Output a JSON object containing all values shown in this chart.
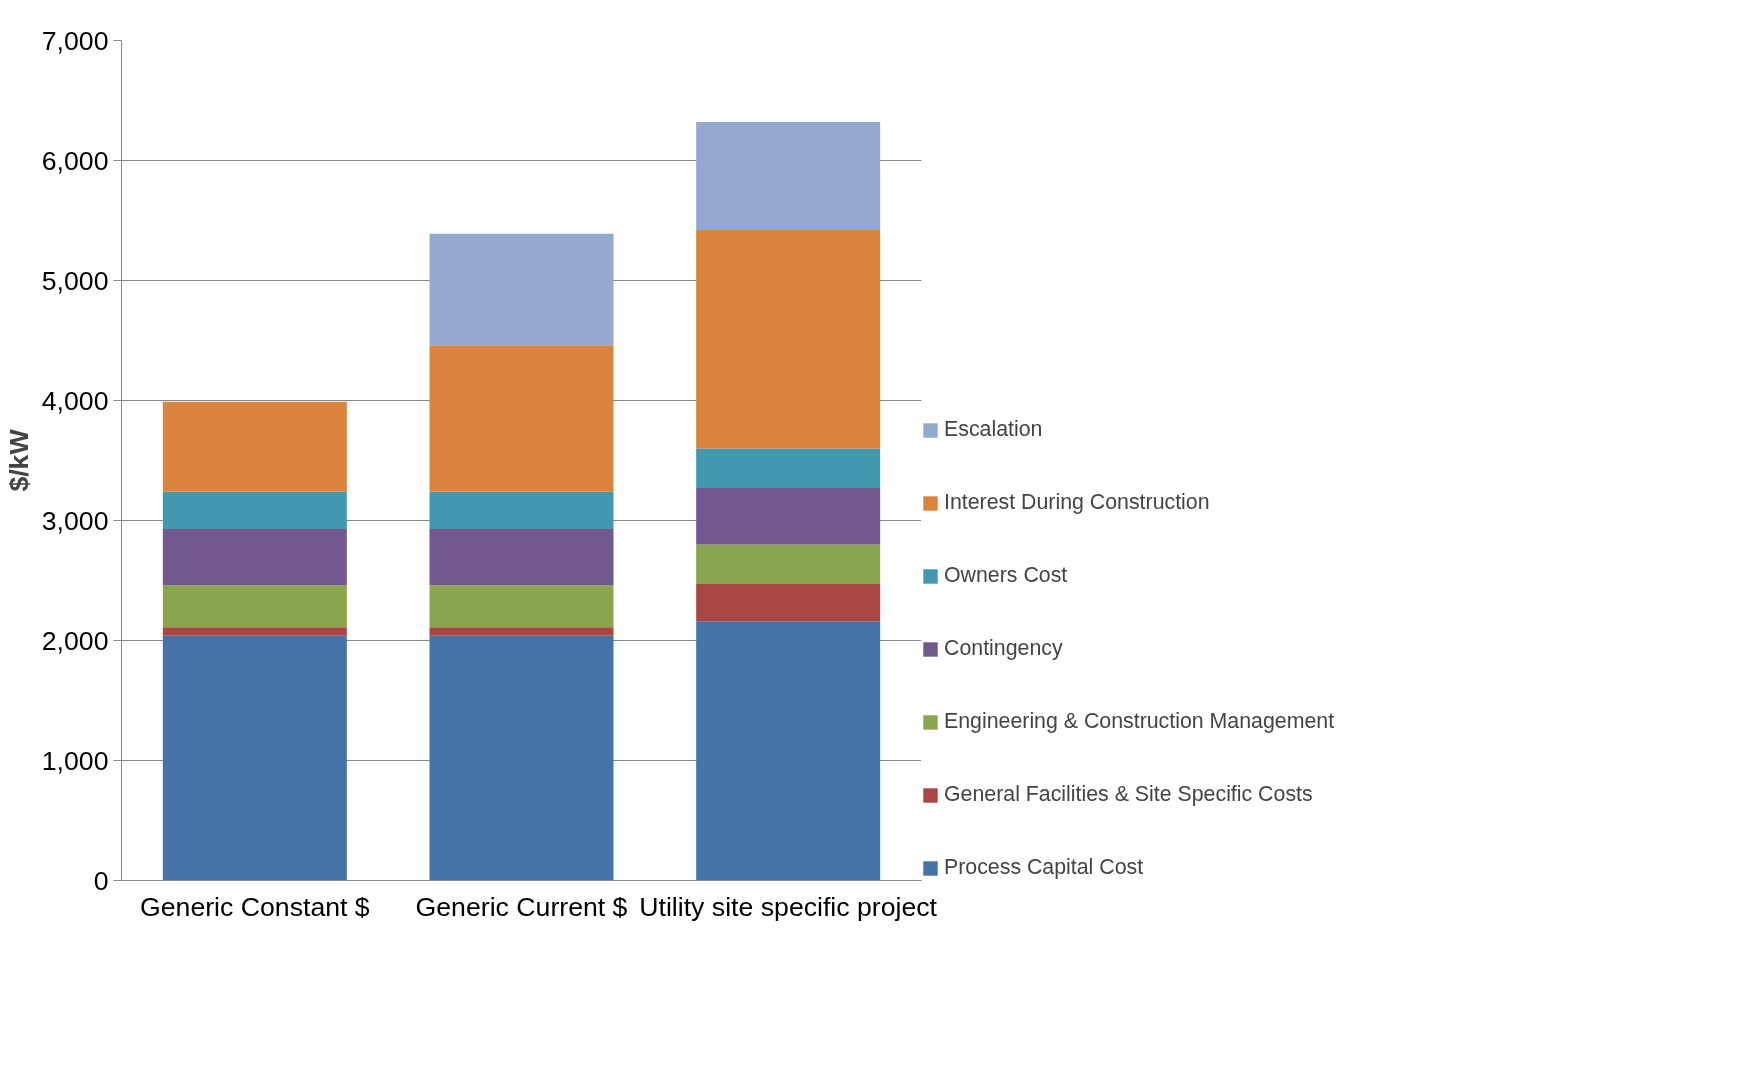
{
  "chart_data": {
    "type": "bar",
    "stacked": true,
    "ylabel": "$/kW",
    "categories": [
      "Generic Constant $",
      "Generic Current $",
      "Utility site specific project"
    ],
    "series": [
      {
        "name": "Process Capital Cost",
        "color": "#4572a7",
        "values": [
          2040,
          2040,
          2160
        ]
      },
      {
        "name": "General Facilities & Site Specific Costs",
        "color": "#aa4643",
        "values": [
          70,
          70,
          310
        ]
      },
      {
        "name": "Engineering & Construction Management",
        "color": "#89a54e",
        "values": [
          350,
          350,
          330
        ]
      },
      {
        "name": "Contingency",
        "color": "#71588f",
        "values": [
          470,
          470,
          470
        ]
      },
      {
        "name": "Owners Cost",
        "color": "#4198af",
        "values": [
          310,
          310,
          330
        ]
      },
      {
        "name": "Interest During Construction",
        "color": "#db843d",
        "values": [
          750,
          1220,
          1820
        ]
      },
      {
        "name": "Escalation",
        "color": "#93a9cf",
        "values": [
          0,
          930,
          900
        ]
      }
    ],
    "ylim": [
      0,
      7000
    ],
    "yticks": [
      {
        "value": 0,
        "label": "0"
      },
      {
        "value": 1000,
        "label": "1,000"
      },
      {
        "value": 2000,
        "label": "2,000"
      },
      {
        "value": 3000,
        "label": "3,000"
      },
      {
        "value": 4000,
        "label": "4,000"
      },
      {
        "value": 5000,
        "label": "5,000"
      },
      {
        "value": 6000,
        "label": "6,000"
      },
      {
        "value": 7000,
        "label": "7,000"
      }
    ],
    "grid": "y",
    "legend": "right"
  }
}
